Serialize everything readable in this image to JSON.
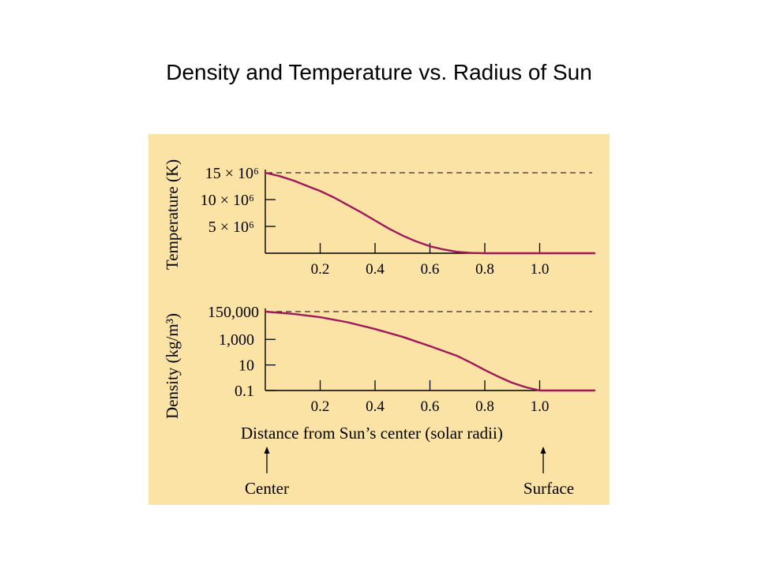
{
  "slide": {
    "title": "Density and Temperature vs. Radius of Sun"
  },
  "figure": {
    "background": "#FBE3A6",
    "curve_color": "#A0185A",
    "axis_color": "#000000",
    "xlabel": "Distance from Sun’s center (solar radii)",
    "arrow_labels": {
      "center": "Center",
      "surface": "Surface"
    }
  },
  "chart_data": [
    {
      "type": "line",
      "ylabel": "Temperature (K)",
      "xlim": [
        0,
        1.2
      ],
      "x_ticks": [
        "0.2",
        "0.4",
        "0.6",
        "0.8",
        "1.0"
      ],
      "x_tick_values": [
        0.2,
        0.4,
        0.6,
        0.8,
        1.0
      ],
      "y_ticks": [
        {
          "label": "15 × 10⁶",
          "value": 15000000
        },
        {
          "label": "10 × 10⁶",
          "value": 10000000
        },
        {
          "label": "5 × 10⁶",
          "value": 5000000
        }
      ],
      "ylim": [
        0,
        15000000
      ],
      "reference_line": {
        "value": 15000000,
        "style": "dashed"
      },
      "series": [
        {
          "x": [
            0,
            0.05,
            0.1,
            0.15,
            0.2,
            0.25,
            0.3,
            0.35,
            0.4,
            0.45,
            0.5,
            0.55,
            0.6,
            0.65,
            0.7,
            0.75,
            0.8,
            0.9,
            1.0,
            1.1,
            1.2
          ],
          "y": [
            15000000,
            14400000,
            13600000,
            12600000,
            11600000,
            10400000,
            9000000,
            7600000,
            6100000,
            4600000,
            3300000,
            2200000,
            1300000,
            700000,
            250000,
            60000,
            0,
            0,
            0,
            0,
            0
          ]
        }
      ]
    },
    {
      "type": "line",
      "ylabel": "Density (kg/m³)",
      "xlim": [
        0,
        1.2
      ],
      "x_ticks": [
        "0.2",
        "0.4",
        "0.6",
        "0.8",
        "1.0"
      ],
      "x_tick_values": [
        0.2,
        0.4,
        0.6,
        0.8,
        1.0
      ],
      "y_scale": "log",
      "y_ticks": [
        {
          "label": "150,000",
          "value": 150000
        },
        {
          "label": "1,000",
          "value": 1000
        },
        {
          "label": "10",
          "value": 10
        },
        {
          "label": "0.1",
          "value": 0.1
        }
      ],
      "ylim": [
        0.1,
        150000
      ],
      "reference_line": {
        "value": 150000,
        "style": "dashed"
      },
      "series": [
        {
          "x": [
            0,
            0.1,
            0.2,
            0.3,
            0.4,
            0.5,
            0.6,
            0.7,
            0.75,
            0.8,
            0.85,
            0.9,
            0.95,
            1.0,
            1.1,
            1.2
          ],
          "y": [
            150000,
            100000,
            55000,
            22000,
            6500,
            1600,
            300,
            50,
            15,
            4,
            1.2,
            0.4,
            0.18,
            0.1,
            0.1,
            0.1
          ]
        }
      ]
    }
  ]
}
